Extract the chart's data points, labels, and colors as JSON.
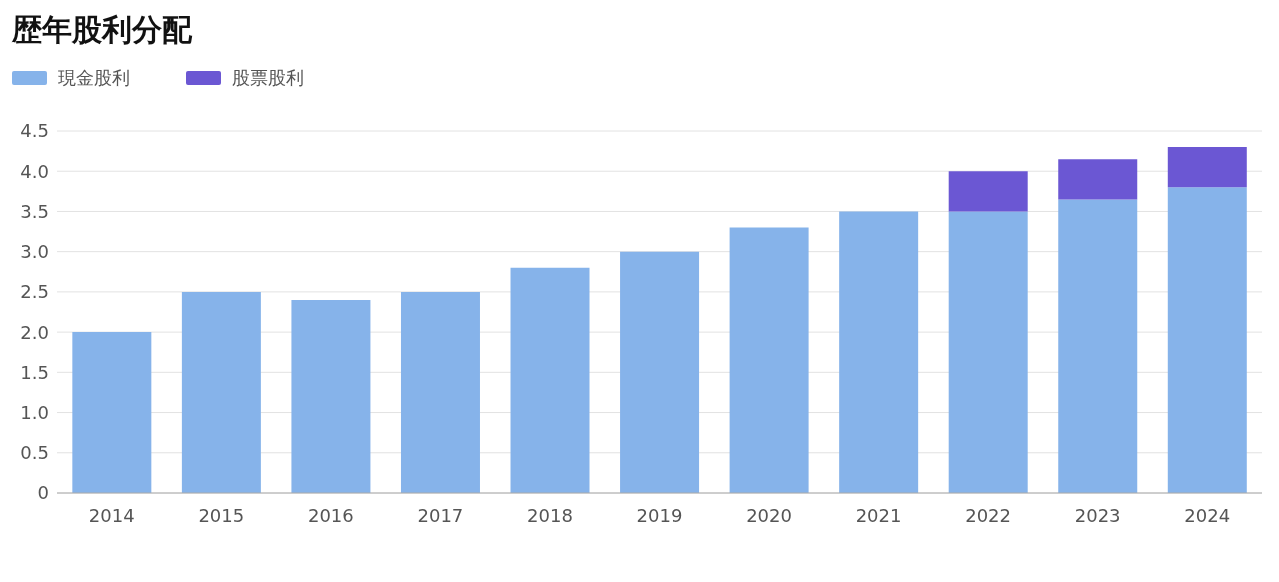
{
  "chart_data": {
    "type": "bar",
    "title": "歴年股利分配",
    "categories": [
      "2014",
      "2015",
      "2016",
      "2017",
      "2018",
      "2019",
      "2020",
      "2021",
      "2022",
      "2023",
      "2024"
    ],
    "series": [
      {
        "name": "現金股利",
        "color": "#86b3ea",
        "values": [
          2.0,
          2.5,
          2.4,
          2.5,
          2.8,
          3.0,
          3.3,
          3.5,
          3.5,
          3.65,
          3.8
        ]
      },
      {
        "name": "股票股利",
        "color": "#6b57d3",
        "values": [
          null,
          null,
          null,
          null,
          null,
          null,
          null,
          null,
          0.5,
          0.5,
          0.5
        ]
      }
    ],
    "stacked": true,
    "ylim": [
      0,
      4.5
    ],
    "yticks": [
      0,
      0.5,
      {
        "value": 1,
        "label": "1.0"
      },
      1.5,
      {
        "value": 2,
        "label": "2.0"
      },
      2.5,
      {
        "value": 3,
        "label": "3.0"
      },
      3.5,
      {
        "value": 4,
        "label": "4.0"
      },
      4.5
    ],
    "grid": "y",
    "legend": "top left"
  }
}
